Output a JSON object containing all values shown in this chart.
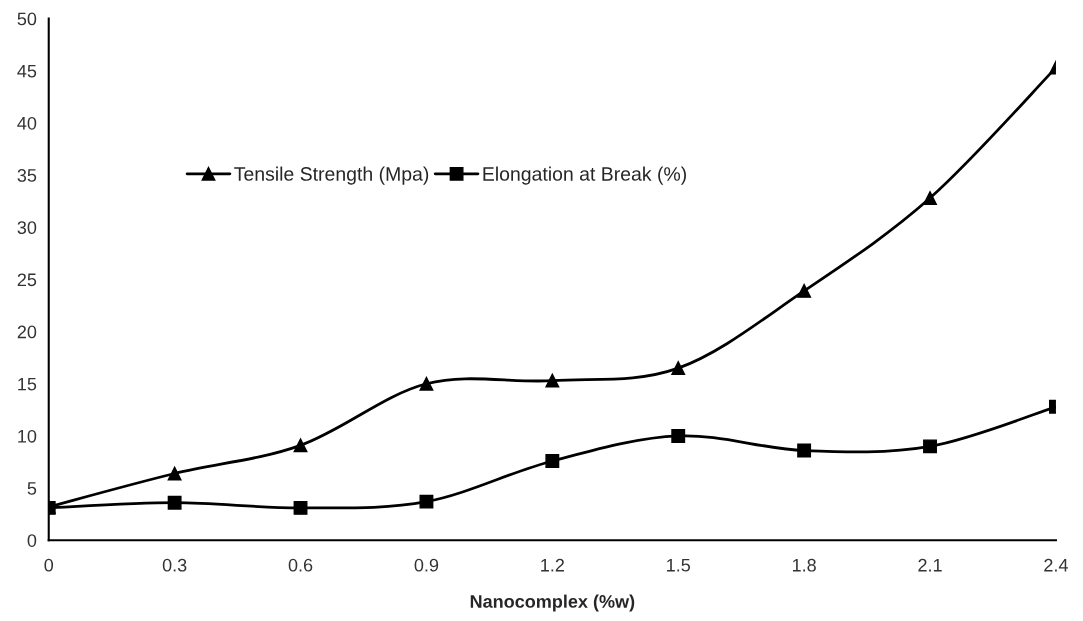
{
  "chart_data": {
    "type": "line",
    "xlabel": "Nanocomplex (%w)",
    "x": [
      0,
      0.3,
      0.6,
      0.9,
      1.2,
      1.5,
      1.8,
      2.1,
      2.4
    ],
    "series": [
      {
        "name": "Tensile Strength (Mpa)",
        "color": "#000000",
        "marker": "triangle",
        "values": [
          3.2,
          6.4,
          9.1,
          15.0,
          15.3,
          16.5,
          23.9,
          32.8,
          45.3
        ]
      },
      {
        "name": "Elongation at Break (%)",
        "color": "#000000",
        "marker": "square",
        "values": [
          3.1,
          3.6,
          3.1,
          3.7,
          7.6,
          10.0,
          8.6,
          9.0,
          12.8
        ]
      }
    ],
    "xlim": [
      0,
      2.4
    ],
    "xticks": [
      0,
      0.3,
      0.6,
      0.9,
      1.2,
      1.5,
      1.8,
      2.1,
      2.4
    ],
    "ylim": [
      0,
      50
    ],
    "yticks": [
      0,
      5,
      10,
      15,
      20,
      25,
      30,
      35,
      40,
      45,
      50
    ],
    "grid": false,
    "legend": "top left",
    "line_style": "solid"
  }
}
